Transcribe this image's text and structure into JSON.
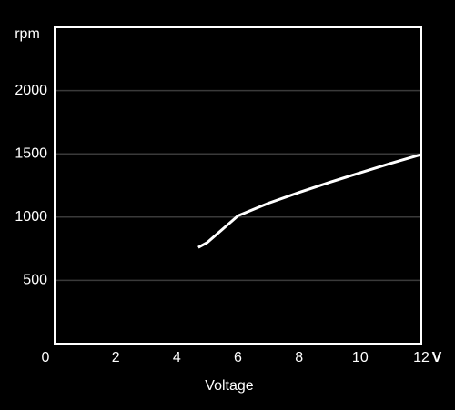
{
  "chart_data": {
    "type": "line",
    "y_label": "rpm",
    "x_label": "Voltage",
    "x_unit": "V",
    "x": [
      4.7,
      5,
      6,
      7,
      8,
      9,
      10,
      11,
      12
    ],
    "series": [
      {
        "color": "#ffffff",
        "values": [
          760,
          800,
          1010,
          1110,
          1195,
          1275,
          1350,
          1425,
          1495
        ]
      }
    ],
    "xlim": [
      0,
      12
    ],
    "xticks": [
      0,
      2,
      4,
      6,
      8,
      10,
      12
    ],
    "ylim": [
      0,
      2500
    ],
    "yticks": [
      500,
      1000,
      1500,
      2000
    ],
    "grid": true
  }
}
